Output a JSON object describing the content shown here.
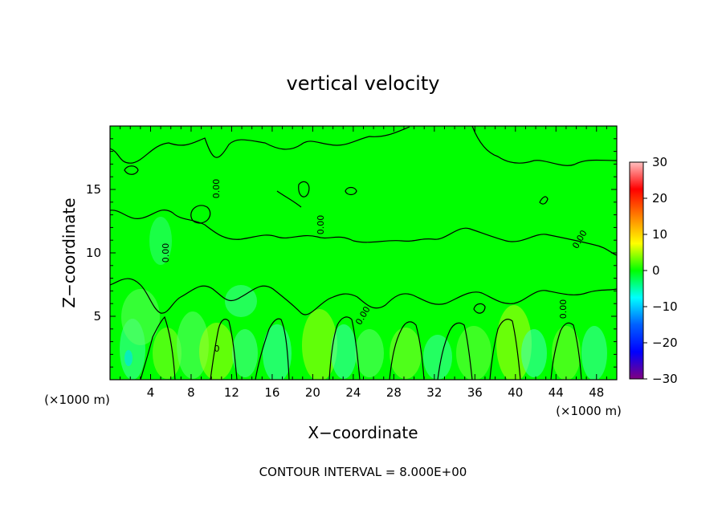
{
  "chart_data": {
    "type": "heatmap",
    "title": "vertical velocity",
    "xlabel": "X−coordinate",
    "ylabel": "Z−coordinate",
    "x_unit_left": "(×1000 m)",
    "x_unit_right": "(×1000 m)",
    "footer": "CONTOUR INTERVAL = 8.000E+00",
    "xlim": [
      0,
      50
    ],
    "ylim": [
      0,
      20
    ],
    "x_ticks": [
      4,
      8,
      12,
      16,
      20,
      24,
      28,
      32,
      36,
      40,
      44,
      48
    ],
    "y_ticks": [
      5,
      10,
      15
    ],
    "colorbar": {
      "range": [
        -30,
        30
      ],
      "ticks": [
        30,
        20,
        10,
        0,
        -10,
        -20,
        -30
      ],
      "tick_labels": [
        "30",
        "20",
        "10",
        "0",
        "−10",
        "−20",
        "−30"
      ],
      "colors": [
        "#ffbfbf",
        "#ff0000",
        "#ff8000",
        "#ffff00",
        "#00ff00",
        "#00ffff",
        "#0060ff",
        "#0000ff",
        "#800080"
      ]
    },
    "contour_level_labels": [
      "0.00",
      "0"
    ],
    "field_background_color": "#00ff00"
  }
}
